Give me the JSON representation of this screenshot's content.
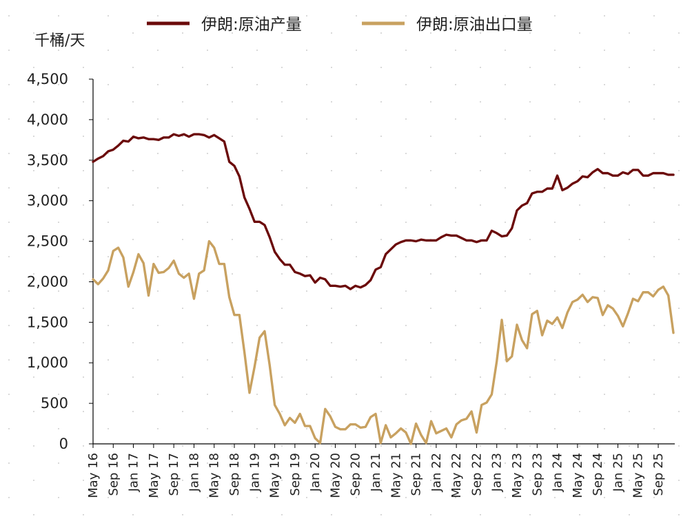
{
  "chart_data": {
    "type": "line",
    "title": "",
    "ylabel": "千桶/天",
    "xlabel": "",
    "ylim": [
      0,
      4500
    ],
    "yticks": [
      0,
      500,
      1000,
      1500,
      2000,
      2500,
      3000,
      3500,
      4000,
      4500
    ],
    "ytick_labels": [
      "0",
      "500",
      "1,000",
      "1,500",
      "2,000",
      "2,500",
      "3,000",
      "3,500",
      "4,000",
      "4,500"
    ],
    "xtick_labels": [
      "May 16",
      "Sep 16",
      "Jan 17",
      "May 17",
      "Sep 17",
      "Jan 18",
      "May 18",
      "Sep 18",
      "Jan 19",
      "May 19",
      "Sep 19",
      "Jan 20",
      "May 20",
      "Sep 20",
      "Jan 21",
      "May 21",
      "Sep 21",
      "Jan 22",
      "May 22",
      "Sep 22",
      "Jan 23",
      "May 23",
      "Sep 23",
      "Jan 24",
      "May 24",
      "Sep 24",
      "Jan 25",
      "May 25",
      "Sep 25"
    ],
    "x_start": "2016-05",
    "x_end": "2025-12",
    "grid": false,
    "legend_position": "top",
    "series": [
      {
        "name": "伊朗:原油产量",
        "color": "#6b0a0a",
        "values": [
          3480,
          3520,
          3550,
          3610,
          3630,
          3680,
          3740,
          3730,
          3790,
          3770,
          3780,
          3760,
          3760,
          3750,
          3780,
          3780,
          3820,
          3800,
          3820,
          3790,
          3820,
          3820,
          3810,
          3780,
          3810,
          3770,
          3730,
          3480,
          3430,
          3300,
          3040,
          2900,
          2740,
          2740,
          2700,
          2550,
          2370,
          2280,
          2210,
          2210,
          2120,
          2100,
          2070,
          2080,
          1990,
          2050,
          2030,
          1950,
          1950,
          1940,
          1950,
          1910,
          1950,
          1930,
          1960,
          2020,
          2150,
          2180,
          2340,
          2400,
          2460,
          2490,
          2510,
          2510,
          2500,
          2520,
          2510,
          2510,
          2510,
          2550,
          2580,
          2570,
          2570,
          2540,
          2510,
          2510,
          2490,
          2510,
          2510,
          2630,
          2600,
          2560,
          2570,
          2660,
          2880,
          2940,
          2970,
          3090,
          3110,
          3110,
          3150,
          3150,
          3310,
          3130,
          3160,
          3210,
          3240,
          3300,
          3290,
          3350,
          3390,
          3340,
          3340,
          3310,
          3310,
          3350,
          3330,
          3380,
          3380,
          3310,
          3310,
          3340,
          3340,
          3340,
          3320,
          3320
        ]
      },
      {
        "name": "伊朗:原油出口量",
        "color": "#c8a160",
        "values": [
          2030,
          1970,
          2040,
          2140,
          2380,
          2420,
          2300,
          1940,
          2120,
          2340,
          2230,
          1830,
          2220,
          2110,
          2120,
          2170,
          2260,
          2100,
          2050,
          2100,
          1790,
          2100,
          2140,
          2500,
          2420,
          2220,
          2220,
          1810,
          1590,
          1590,
          1130,
          630,
          950,
          1310,
          1390,
          970,
          480,
          370,
          230,
          320,
          260,
          370,
          220,
          220,
          70,
          10,
          430,
          340,
          210,
          180,
          180,
          240,
          240,
          200,
          210,
          330,
          370,
          10,
          230,
          80,
          130,
          190,
          140,
          0,
          250,
          110,
          10,
          280,
          130,
          160,
          190,
          80,
          240,
          290,
          310,
          400,
          140,
          480,
          510,
          610,
          1020,
          1530,
          1020,
          1080,
          1470,
          1280,
          1180,
          1600,
          1640,
          1340,
          1520,
          1480,
          1560,
          1430,
          1620,
          1750,
          1780,
          1840,
          1750,
          1810,
          1800,
          1590,
          1710,
          1670,
          1580,
          1450,
          1610,
          1790,
          1760,
          1870,
          1870,
          1820,
          1900,
          1940,
          1830,
          1370
        ]
      }
    ]
  }
}
